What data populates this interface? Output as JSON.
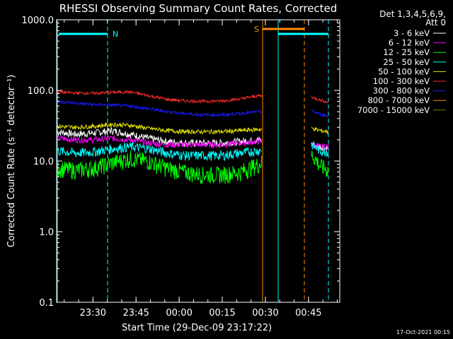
{
  "chart_data": {
    "type": "line",
    "title": "RHESSI Observing Summary Count Rates, Corrected",
    "xlabel": "Start Time (29-Dec-09 23:17:22)",
    "ylabel": "Corrected Count Rate (s⁻¹ detector⁻¹)",
    "yscale": "log",
    "ylim": [
      0.1,
      1000
    ],
    "xlim_minutes_from_start": [
      0,
      98.5
    ],
    "x_ticks": [
      "23:30",
      "23:45",
      "00:00",
      "00:15",
      "00:30",
      "00:45"
    ],
    "y_ticks": [
      "1000.0",
      "100.0",
      "10.0",
      "1.0",
      "0.1"
    ],
    "legend_header": [
      "Det 1,3,4,5,6,9,",
      "Att 0"
    ],
    "footer": "17-Oct-2021 00:15",
    "flags": {
      "night_label": "N",
      "saa_label": "S"
    },
    "series": [
      {
        "name": "3 - 6 keV",
        "color": "#ffffff",
        "values": [
          26,
          24,
          25,
          27,
          24,
          21,
          19,
          18,
          18,
          18,
          19,
          20,
          17,
          16,
          15
        ]
      },
      {
        "name": "6 - 12 keV",
        "color": "#ff00ff",
        "values": [
          21,
          20,
          20,
          21,
          20,
          18,
          17,
          17,
          17,
          17,
          18,
          19,
          17,
          16,
          16
        ]
      },
      {
        "name": "12 - 25 keV",
        "color": "#00ff00",
        "values": [
          8,
          7.5,
          8,
          9.5,
          11,
          10,
          8,
          7,
          6.5,
          6.5,
          7,
          9,
          12.5,
          8.5,
          7.5
        ]
      },
      {
        "name": "25 - 50 keV",
        "color": "#00ffff",
        "values": [
          14,
          13,
          13.5,
          15,
          16,
          15,
          13,
          12,
          12,
          12,
          13,
          14,
          17,
          14,
          13.5
        ]
      },
      {
        "name": "50 - 100 keV",
        "color": "#e5e500",
        "values": [
          31,
          30,
          31,
          33,
          32,
          29,
          27,
          26,
          26,
          26,
          27,
          28,
          29,
          27,
          26
        ]
      },
      {
        "name": "100 - 300 keV",
        "color": "#ff2a2a",
        "values": [
          95,
          92,
          91,
          94,
          95,
          84,
          75,
          71,
          70,
          71,
          76,
          84,
          80,
          73,
          68
        ]
      },
      {
        "name": "300 - 800 keV",
        "color": "#1a1aff",
        "values": [
          70,
          66,
          63,
          62,
          60,
          55,
          50,
          47,
          45,
          45,
          47,
          50,
          51,
          46,
          43
        ]
      },
      {
        "name": "800 - 7000 keV",
        "color": "#ff8c00",
        "values": []
      },
      {
        "name": "7000 - 15000 keV",
        "color": "#7a7a00",
        "values": []
      }
    ]
  }
}
